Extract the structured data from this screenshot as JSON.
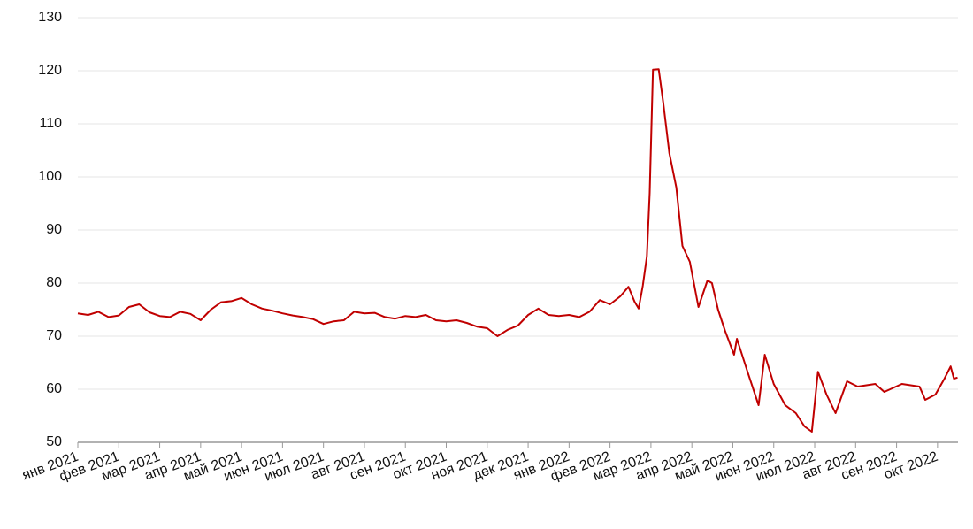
{
  "chart_data": {
    "type": "line",
    "color": "#c00000",
    "grid": true,
    "x": [
      0,
      0.25,
      0.5,
      0.75,
      1,
      1.25,
      1.5,
      1.75,
      2,
      2.25,
      2.5,
      2.75,
      3,
      3.25,
      3.5,
      3.75,
      4,
      4.25,
      4.5,
      4.75,
      5,
      5.25,
      5.5,
      5.75,
      6,
      6.25,
      6.5,
      6.75,
      7,
      7.25,
      7.5,
      7.75,
      8,
      8.25,
      8.5,
      8.75,
      9,
      9.25,
      9.5,
      9.75,
      10,
      10.25,
      10.5,
      10.75,
      11,
      11.25,
      11.5,
      11.75,
      12,
      12.25,
      12.5,
      12.75,
      13,
      13.25,
      13.45,
      13.6,
      13.7,
      13.8,
      13.9,
      13.97,
      14.05,
      14.19,
      14.3,
      14.45,
      14.62,
      14.77,
      14.95,
      15.16,
      15.38,
      15.49,
      15.64,
      15.81,
      16.03,
      16.1,
      16.35,
      16.63,
      16.78,
      17.0,
      17.28,
      17.54,
      17.75,
      17.93,
      18.08,
      18.29,
      18.51,
      18.79,
      19.05,
      19.48,
      19.7,
      20.13,
      20.56,
      20.7,
      20.95,
      21.17,
      21.32,
      21.4,
      21.49
    ],
    "values": [
      74.3,
      74.0,
      74.6,
      73.6,
      73.9,
      75.5,
      76.0,
      74.5,
      73.8,
      73.6,
      74.6,
      74.2,
      73.0,
      75.0,
      76.4,
      76.6,
      77.2,
      76.0,
      75.2,
      74.8,
      74.3,
      73.9,
      73.6,
      73.2,
      72.3,
      72.8,
      73.0,
      74.6,
      74.3,
      74.4,
      73.6,
      73.3,
      73.8,
      73.6,
      74.0,
      73.0,
      72.8,
      73.0,
      72.5,
      71.8,
      71.5,
      70.0,
      71.2,
      72.0,
      74.0,
      75.2,
      74.0,
      73.8,
      74.0,
      73.6,
      74.6,
      76.8,
      76.0,
      77.5,
      79.3,
      76.5,
      75.2,
      79.5,
      85,
      97,
      120.2,
      120.3,
      114,
      104.5,
      98,
      87,
      84,
      75.5,
      80.5,
      80,
      75,
      71,
      66.5,
      69.5,
      63.5,
      57,
      66.5,
      61,
      57,
      55.5,
      53,
      52,
      63.3,
      59,
      55.5,
      61.5,
      60.5,
      61,
      59.5,
      61,
      60.5,
      58,
      59,
      62,
      64.3,
      62,
      62.2
    ],
    "xlim": [
      0,
      21.5
    ],
    "xticks": [
      {
        "value": 0,
        "label": "янв 2021"
      },
      {
        "value": 1,
        "label": "фев 2021"
      },
      {
        "value": 2,
        "label": "мар 2021"
      },
      {
        "value": 3,
        "label": "апр 2021"
      },
      {
        "value": 4,
        "label": "май 2021"
      },
      {
        "value": 5,
        "label": "июн 2021"
      },
      {
        "value": 6,
        "label": "июл 2021"
      },
      {
        "value": 7,
        "label": "авг 2021"
      },
      {
        "value": 8,
        "label": "сен 2021"
      },
      {
        "value": 9,
        "label": "окт 2021"
      },
      {
        "value": 10,
        "label": "ноя 2021"
      },
      {
        "value": 11,
        "label": "дек 2021"
      },
      {
        "value": 12,
        "label": "янв 2022"
      },
      {
        "value": 13,
        "label": "фев 2022"
      },
      {
        "value": 14,
        "label": "мар 2022"
      },
      {
        "value": 15,
        "label": "апр 2022"
      },
      {
        "value": 16,
        "label": "май 2022"
      },
      {
        "value": 17,
        "label": "июн 2022"
      },
      {
        "value": 18,
        "label": "июл 2022"
      },
      {
        "value": 19,
        "label": "авг 2022"
      },
      {
        "value": 20,
        "label": "сен 2022"
      },
      {
        "value": 21,
        "label": "окт 2022"
      }
    ],
    "ylim": [
      50,
      130
    ],
    "yticks": [
      50,
      60,
      70,
      80,
      90,
      100,
      110,
      120,
      130
    ]
  }
}
